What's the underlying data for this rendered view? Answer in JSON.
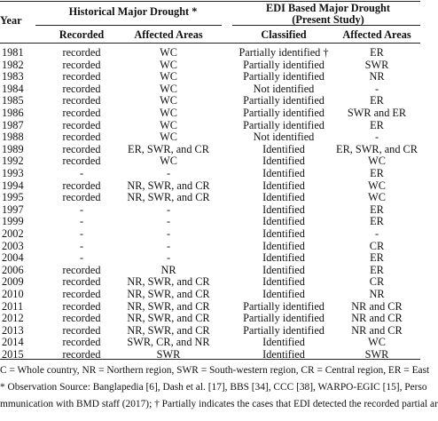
{
  "table": {
    "header": {
      "year": "Year",
      "historical": "Historical Major Drought *",
      "edi_line1": "EDI Based Major Drought",
      "edi_line2": "(Present Study)",
      "columns": [
        "Recorded",
        "Affected Areas",
        "Classified",
        "Affected Areas"
      ]
    },
    "rows": [
      [
        "1981",
        "recorded",
        "WC",
        "Partially identified †",
        "ER"
      ],
      [
        "1982",
        "recorded",
        "WC",
        "Partially identified",
        "SWR"
      ],
      [
        "1983",
        "recorded",
        "WC",
        "Partially identified",
        "NR"
      ],
      [
        "1984",
        "recorded",
        "WC",
        "Not identified",
        "-"
      ],
      [
        "1985",
        "recorded",
        "WC",
        "Partially identified",
        "ER"
      ],
      [
        "1986",
        "recorded",
        "WC",
        "Partially identified",
        "SWR and ER"
      ],
      [
        "1987",
        "recorded",
        "WC",
        "Partially identified",
        "ER"
      ],
      [
        "1988",
        "recorded",
        "WC",
        "Not identified",
        "-"
      ],
      [
        "1989",
        "recorded",
        "ER, SWR, and CR",
        "Identified",
        "ER, SWR, and CR"
      ],
      [
        "1992",
        "recorded",
        "WC",
        "Identified",
        "WC"
      ],
      [
        "1993",
        "-",
        "-",
        "Identified",
        "ER"
      ],
      [
        "1994",
        "recorded",
        "NR, SWR, and CR",
        "Identified",
        "WC"
      ],
      [
        "1995",
        "recorded",
        "NR, SWR, and CR",
        "Identified",
        "WC"
      ],
      [
        "1997",
        "-",
        "-",
        "Identified",
        "ER"
      ],
      [
        "1999",
        "-",
        "-",
        "Identified",
        "ER"
      ],
      [
        "2002",
        "-",
        "-",
        "Identified",
        "-"
      ],
      [
        "2003",
        "-",
        "-",
        "Identified",
        "CR"
      ],
      [
        "2004",
        "-",
        "-",
        "Identified",
        "ER"
      ],
      [
        "2006",
        "recorded",
        "NR",
        "Identified",
        "ER"
      ],
      [
        "2009",
        "recorded",
        "NR, SWR, and CR",
        "Identified",
        "CR"
      ],
      [
        "2010",
        "recorded",
        "NR, SWR, and CR",
        "Identified",
        "NR"
      ],
      [
        "2011",
        "recorded",
        "NR, SWR, and CR",
        "Partially identified",
        "NR and CR"
      ],
      [
        "2012",
        "recorded",
        "NR, SWR, and CR",
        "Partially identified",
        "NR and CR"
      ],
      [
        "2013",
        "recorded",
        "NR, SWR, and CR",
        "Partially identified",
        "NR and CR"
      ],
      [
        "2014",
        "recorded",
        "SWR, CR, and NR",
        "Identified",
        "WC"
      ],
      [
        "2015",
        "recorded",
        "SWR",
        "Identified",
        "SWR"
      ]
    ],
    "footnotes": [
      "C = Whole country, NR = Northern region, SWR = South-western region, CR = Central region, ER = East",
      "* Observation Source: Banglapedia [6], Dash et al. [17], BBS [34], CCC [38], WARPO-EGIC [15], Perso",
      "mmunication with BMD staff (2017); † Partially indicates the cases that EDI detected the recorded partial ar"
    ]
  }
}
